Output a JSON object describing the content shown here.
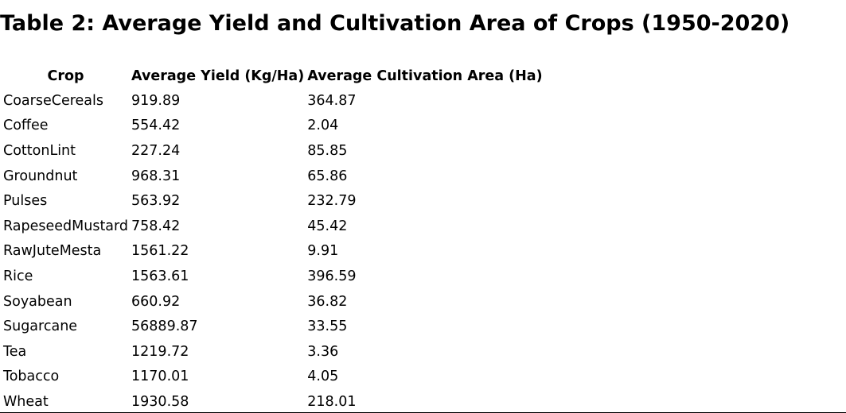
{
  "document": {
    "title": "Table 2: Average Yield and Cultivation Area of Crops (1950-2020)"
  },
  "table": {
    "headers": {
      "crop": "Crop",
      "yield": "Average Yield (Kg/Ha)",
      "area": "Average Cultivation Area (Ha)"
    },
    "rows": [
      {
        "crop": "CoarseCereals",
        "yield": "919.89",
        "area": "364.87"
      },
      {
        "crop": "Coffee",
        "yield": "554.42",
        "area": "2.04"
      },
      {
        "crop": "CottonLint",
        "yield": "227.24",
        "area": "85.85"
      },
      {
        "crop": "Groundnut",
        "yield": "968.31",
        "area": "65.86"
      },
      {
        "crop": "Pulses",
        "yield": "563.92",
        "area": "232.79"
      },
      {
        "crop": "RapeseedMustard",
        "yield": "758.42",
        "area": "45.42"
      },
      {
        "crop": "RawJuteMesta",
        "yield": "1561.22",
        "area": "9.91"
      },
      {
        "crop": "Rice",
        "yield": "1563.61",
        "area": "396.59"
      },
      {
        "crop": "Soyabean",
        "yield": "660.92",
        "area": "36.82"
      },
      {
        "crop": "Sugarcane",
        "yield": "56889.87",
        "area": "33.55"
      },
      {
        "crop": "Tea",
        "yield": "1219.72",
        "area": "3.36"
      },
      {
        "crop": "Tobacco",
        "yield": "1170.01",
        "area": "4.05"
      },
      {
        "crop": "Wheat",
        "yield": "1930.58",
        "area": "218.01"
      }
    ]
  }
}
